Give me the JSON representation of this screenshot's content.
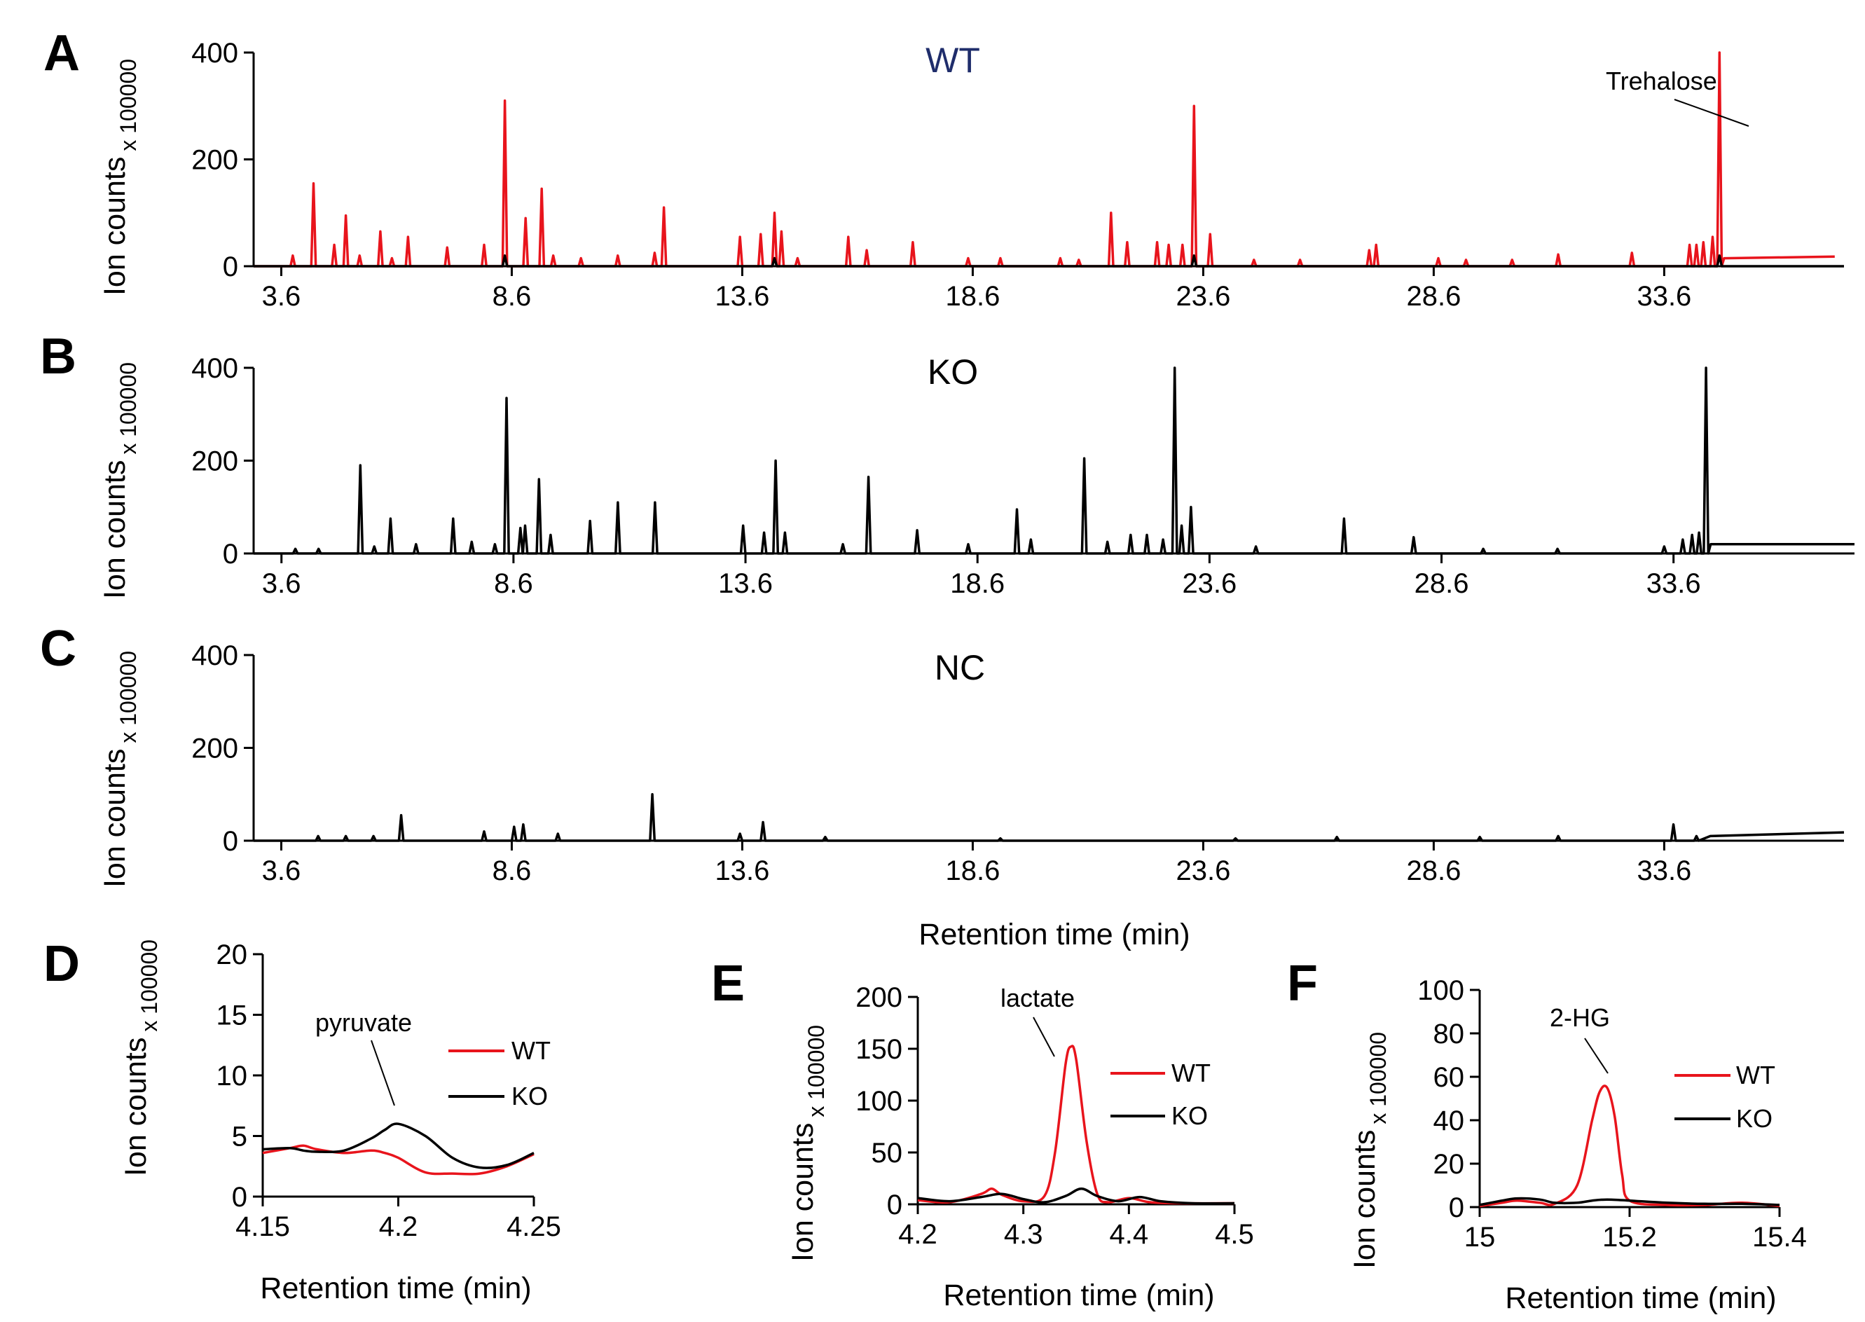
{
  "chart_data": [
    {
      "panel": "A",
      "type": "line",
      "title": "WT",
      "title_color": "#1f2d6b",
      "xlabel": "",
      "ylabel": "Ion counts",
      "ylabel_unit": "x 100000",
      "xlim": [
        3.0,
        37.5
      ],
      "ylim": [
        0,
        400
      ],
      "xticks": [
        3.6,
        8.6,
        13.6,
        18.6,
        23.6,
        28.6,
        33.6
      ],
      "yticks": [
        0,
        200,
        400
      ],
      "series": [
        {
          "color": "#e8141c",
          "baseline": 0,
          "peaks": [
            [
              3.85,
              20
            ],
            [
              4.3,
              155
            ],
            [
              4.75,
              40
            ],
            [
              5.0,
              95
            ],
            [
              5.3,
              20
            ],
            [
              5.75,
              65
            ],
            [
              6.0,
              15
            ],
            [
              6.35,
              55
            ],
            [
              7.2,
              35
            ],
            [
              8.0,
              40
            ],
            [
              8.45,
              310
            ],
            [
              8.9,
              90
            ],
            [
              9.25,
              145
            ],
            [
              9.5,
              20
            ],
            [
              10.1,
              15
            ],
            [
              10.9,
              20
            ],
            [
              11.7,
              25
            ],
            [
              11.9,
              110
            ],
            [
              13.55,
              55
            ],
            [
              14.0,
              60
            ],
            [
              14.3,
              100
            ],
            [
              14.45,
              65
            ],
            [
              14.8,
              15
            ],
            [
              15.9,
              55
            ],
            [
              16.3,
              30
            ],
            [
              17.3,
              45
            ],
            [
              18.5,
              15
            ],
            [
              19.2,
              15
            ],
            [
              20.5,
              15
            ],
            [
              20.9,
              12
            ],
            [
              21.6,
              100
            ],
            [
              21.95,
              45
            ],
            [
              22.6,
              45
            ],
            [
              22.85,
              40
            ],
            [
              23.15,
              40
            ],
            [
              23.4,
              300
            ],
            [
              23.75,
              60
            ],
            [
              24.7,
              12
            ],
            [
              25.7,
              12
            ],
            [
              27.2,
              30
            ],
            [
              27.35,
              40
            ],
            [
              28.7,
              15
            ],
            [
              29.3,
              12
            ],
            [
              30.3,
              12
            ],
            [
              31.3,
              22
            ],
            [
              32.9,
              25
            ],
            [
              34.15,
              40
            ],
            [
              34.3,
              40
            ],
            [
              34.45,
              45
            ],
            [
              34.65,
              55
            ],
            [
              34.8,
              400
            ]
          ],
          "tail": [
            [
              34.9,
              15
            ],
            [
              37.3,
              18
            ]
          ]
        },
        {
          "color": "#000000",
          "baseline": 0,
          "peaks": [
            [
              8.45,
              20
            ],
            [
              14.3,
              15
            ],
            [
              23.4,
              20
            ],
            [
              34.8,
              20
            ]
          ],
          "tail": []
        }
      ],
      "annotations": [
        {
          "text": "Trehalose",
          "x": 34.8,
          "y": 260
        }
      ]
    },
    {
      "panel": "B",
      "type": "line",
      "title": "KO",
      "title_color": "#000000",
      "xlabel": "",
      "ylabel": "Ion counts",
      "ylabel_unit": "x 100000",
      "xlim": [
        3.0,
        37.5
      ],
      "ylim": [
        0,
        400
      ],
      "xticks": [
        3.6,
        8.6,
        13.6,
        18.6,
        23.6,
        28.6,
        33.6
      ],
      "yticks": [
        0,
        200,
        400
      ],
      "series": [
        {
          "color": "#000000",
          "baseline": 0,
          "peaks": [
            [
              3.9,
              10
            ],
            [
              4.4,
              10
            ],
            [
              5.3,
              190
            ],
            [
              5.6,
              15
            ],
            [
              5.95,
              75
            ],
            [
              6.5,
              20
            ],
            [
              7.3,
              75
            ],
            [
              7.7,
              25
            ],
            [
              8.2,
              20
            ],
            [
              8.45,
              335
            ],
            [
              8.75,
              55
            ],
            [
              8.85,
              60
            ],
            [
              9.15,
              160
            ],
            [
              9.4,
              40
            ],
            [
              10.25,
              70
            ],
            [
              10.85,
              110
            ],
            [
              11.65,
              110
            ],
            [
              13.55,
              60
            ],
            [
              14.0,
              45
            ],
            [
              14.25,
              200
            ],
            [
              14.45,
              45
            ],
            [
              15.7,
              20
            ],
            [
              16.25,
              165
            ],
            [
              17.3,
              50
            ],
            [
              18.4,
              20
            ],
            [
              19.45,
              95
            ],
            [
              19.75,
              30
            ],
            [
              20.9,
              205
            ],
            [
              21.4,
              25
            ],
            [
              21.9,
              40
            ],
            [
              22.25,
              40
            ],
            [
              22.6,
              30
            ],
            [
              22.85,
              400
            ],
            [
              23.0,
              60
            ],
            [
              23.2,
              100
            ],
            [
              24.6,
              15
            ],
            [
              26.5,
              75
            ],
            [
              28.0,
              35
            ],
            [
              29.5,
              10
            ],
            [
              31.1,
              10
            ],
            [
              33.4,
              15
            ],
            [
              33.8,
              30
            ],
            [
              34.0,
              40
            ],
            [
              34.15,
              45
            ],
            [
              34.3,
              400
            ]
          ],
          "tail": [
            [
              34.4,
              20
            ],
            [
              37.5,
              20
            ]
          ]
        }
      ],
      "annotations": []
    },
    {
      "panel": "C",
      "type": "line",
      "title": "NC",
      "title_color": "#000000",
      "xlabel": "Retention time (min)",
      "ylabel": "Ion counts",
      "ylabel_unit": "x 100000",
      "xlim": [
        3.0,
        37.5
      ],
      "ylim": [
        0,
        400
      ],
      "xticks": [
        3.6,
        8.6,
        13.6,
        18.6,
        23.6,
        28.6,
        33.6
      ],
      "yticks": [
        0,
        200,
        400
      ],
      "series": [
        {
          "color": "#000000",
          "baseline": 0,
          "peaks": [
            [
              4.4,
              10
            ],
            [
              5.0,
              10
            ],
            [
              5.6,
              10
            ],
            [
              6.2,
              55
            ],
            [
              8.0,
              20
            ],
            [
              8.65,
              30
            ],
            [
              8.85,
              35
            ],
            [
              9.6,
              15
            ],
            [
              11.65,
              100
            ],
            [
              13.55,
              15
            ],
            [
              14.05,
              40
            ],
            [
              15.4,
              8
            ],
            [
              19.2,
              5
            ],
            [
              24.3,
              5
            ],
            [
              26.5,
              8
            ],
            [
              29.6,
              8
            ],
            [
              31.3,
              10
            ],
            [
              33.8,
              35
            ],
            [
              34.3,
              10
            ]
          ],
          "tail": [
            [
              34.6,
              10
            ],
            [
              37.5,
              18
            ]
          ]
        }
      ],
      "annotations": []
    },
    {
      "panel": "D",
      "type": "line",
      "title": "",
      "xlabel": "Retention time (min)",
      "ylabel": "Ion counts",
      "ylabel_unit": "x 100000",
      "xlim": [
        4.15,
        4.25
      ],
      "ylim": [
        0,
        20
      ],
      "xticks": [
        4.15,
        4.2,
        4.25
      ],
      "xtick_labels": [
        "4.15",
        "4.2",
        "4.25"
      ],
      "yticks": [
        0,
        5,
        10,
        15,
        20
      ],
      "series": [
        {
          "name": "WT",
          "color": "#e8141c",
          "x": [
            4.15,
            4.16,
            4.165,
            4.17,
            4.18,
            4.19,
            4.195,
            4.2,
            4.21,
            4.22,
            4.23,
            4.24,
            4.25
          ],
          "y": [
            3.6,
            4.0,
            4.2,
            3.9,
            3.6,
            3.8,
            3.6,
            3.2,
            2.0,
            1.9,
            1.9,
            2.5,
            3.5
          ]
        },
        {
          "name": "KO",
          "color": "#000000",
          "x": [
            4.15,
            4.16,
            4.165,
            4.17,
            4.18,
            4.19,
            4.195,
            4.2,
            4.21,
            4.22,
            4.23,
            4.24,
            4.25
          ],
          "y": [
            3.9,
            4.0,
            3.8,
            3.7,
            3.8,
            4.8,
            5.5,
            6.0,
            5.0,
            3.2,
            2.4,
            2.6,
            3.6
          ]
        }
      ],
      "annotations": [
        {
          "text": "pyruvate",
          "x": 4.197,
          "y": 6.5
        }
      ],
      "legend": [
        "WT",
        "KO"
      ]
    },
    {
      "panel": "E",
      "type": "line",
      "title": "",
      "xlabel": "Retention time (min)",
      "ylabel": "Ion counts",
      "ylabel_unit": "x 100000",
      "xlim": [
        4.2,
        4.5
      ],
      "ylim": [
        0,
        200
      ],
      "xticks": [
        4.2,
        4.3,
        4.4,
        4.5
      ],
      "xtick_labels": [
        "4.2",
        "4.3",
        "4.4",
        "4.5"
      ],
      "yticks": [
        0,
        50,
        100,
        150,
        200
      ],
      "series": [
        {
          "name": "WT",
          "color": "#e8141c",
          "x": [
            4.2,
            4.23,
            4.26,
            4.27,
            4.28,
            4.3,
            4.32,
            4.33,
            4.34,
            4.345,
            4.35,
            4.36,
            4.37,
            4.38,
            4.4,
            4.42,
            4.45,
            4.5
          ],
          "y": [
            4,
            2,
            10,
            15,
            9,
            3,
            8,
            50,
            135,
            152,
            140,
            60,
            10,
            2,
            6,
            2,
            1,
            1
          ]
        },
        {
          "name": "KO",
          "color": "#000000",
          "x": [
            4.2,
            4.23,
            4.26,
            4.28,
            4.3,
            4.32,
            4.34,
            4.355,
            4.37,
            4.39,
            4.41,
            4.43,
            4.46,
            4.5
          ],
          "y": [
            6,
            3,
            7,
            10,
            5,
            2,
            8,
            15,
            8,
            3,
            7,
            3,
            1,
            1
          ]
        }
      ],
      "annotations": [
        {
          "text": "lactate",
          "x": 4.347,
          "y": 155
        }
      ],
      "legend": [
        "WT",
        "KO"
      ]
    },
    {
      "panel": "F",
      "type": "line",
      "title": "",
      "xlabel": "Retention time (min)",
      "ylabel": "Ion counts",
      "ylabel_unit": "x 100000",
      "xlim": [
        15.0,
        15.4
      ],
      "ylim": [
        0,
        100
      ],
      "xticks": [
        15.0,
        15.2,
        15.4
      ],
      "xtick_labels": [
        "15",
        "15.2",
        "15.4"
      ],
      "yticks": [
        0,
        20,
        40,
        60,
        80,
        100
      ],
      "series": [
        {
          "name": "WT",
          "color": "#e8141c",
          "x": [
            15.0,
            15.03,
            15.05,
            15.08,
            15.1,
            15.13,
            15.15,
            15.16,
            15.17,
            15.18,
            15.19,
            15.2,
            15.25,
            15.3,
            15.35,
            15.4
          ],
          "y": [
            0.5,
            2,
            3,
            2,
            1.5,
            10,
            40,
            53,
            55,
            42,
            15,
            3,
            1,
            1,
            2,
            0.5
          ]
        },
        {
          "name": "KO",
          "color": "#000000",
          "x": [
            15.0,
            15.03,
            15.05,
            15.08,
            15.1,
            15.13,
            15.15,
            15.17,
            15.2,
            15.25,
            15.3,
            15.35,
            15.4
          ],
          "y": [
            1,
            3,
            4,
            3.5,
            2,
            2,
            3,
            3.5,
            3,
            2,
            1.5,
            1.5,
            1
          ]
        }
      ],
      "annotations": [
        {
          "text": "2-HG",
          "x": 15.17,
          "y": 58
        }
      ],
      "legend": [
        "WT",
        "KO"
      ]
    }
  ]
}
